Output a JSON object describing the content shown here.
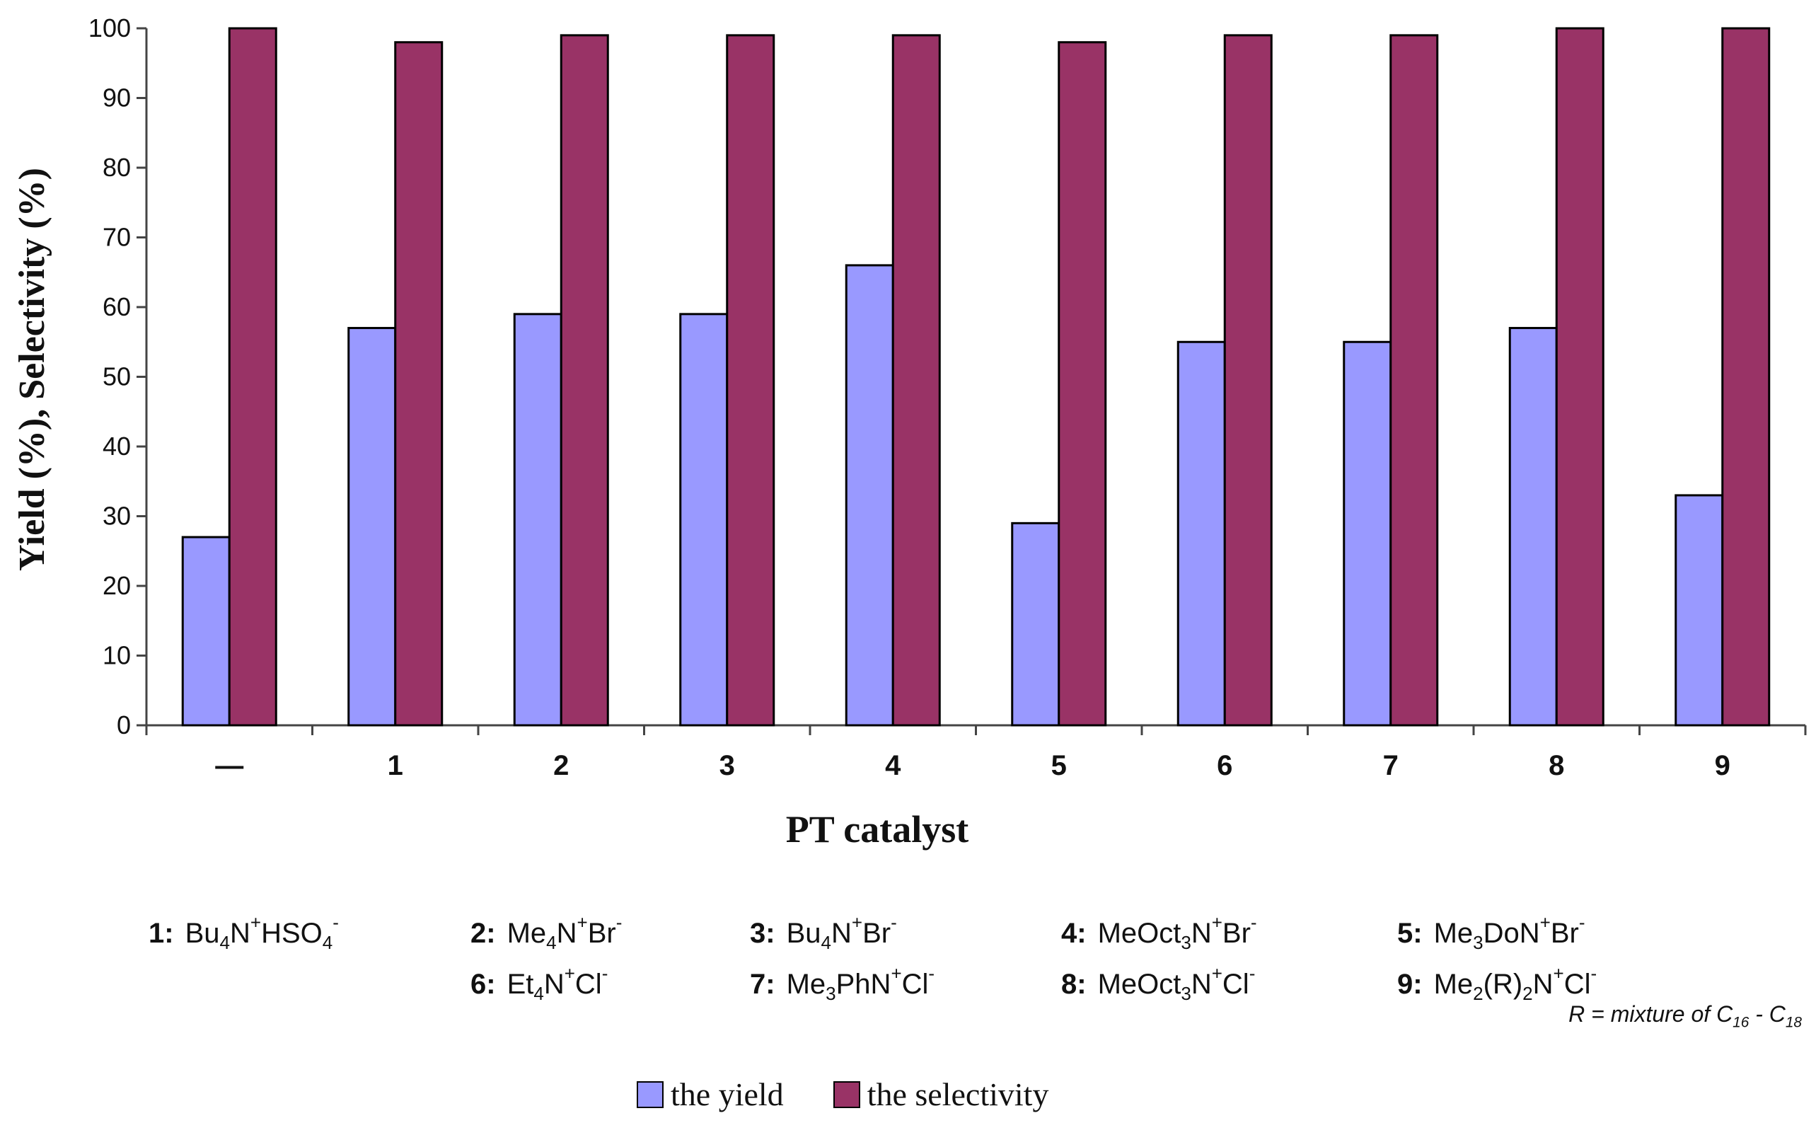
{
  "chart_data": {
    "type": "bar",
    "title": "",
    "xlabel": "PT catalyst",
    "ylabel": "Yield (%), Selectivity (%)",
    "categories": [
      "—",
      "1",
      "2",
      "3",
      "4",
      "5",
      "6",
      "7",
      "8",
      "9"
    ],
    "ylim": [
      0,
      100
    ],
    "yticks": [
      "0",
      "10",
      "20",
      "30",
      "40",
      "50",
      "60",
      "70",
      "80",
      "90",
      "100"
    ],
    "series": [
      {
        "name": "the yield",
        "color": "#9999ff",
        "values": [
          27,
          57,
          59,
          59,
          66,
          29,
          55,
          55,
          57,
          33
        ]
      },
      {
        "name": "the selectivity",
        "color": "#993366",
        "values": [
          100,
          98,
          99,
          99,
          99,
          98,
          99,
          99,
          100,
          100
        ]
      }
    ],
    "legend_position": "bottom",
    "grid": false
  },
  "catalyst_key": [
    {
      "num": "1:",
      "parts": [
        [
          "t",
          "Bu"
        ],
        [
          "sub",
          "4"
        ],
        [
          "t",
          "N"
        ],
        [
          "sup",
          "+"
        ],
        [
          "t",
          "HSO"
        ],
        [
          "sub",
          "4"
        ],
        [
          "sup",
          "-"
        ]
      ]
    },
    {
      "num": "2:",
      "parts": [
        [
          "t",
          "Me"
        ],
        [
          "sub",
          "4"
        ],
        [
          "t",
          "N"
        ],
        [
          "sup",
          "+"
        ],
        [
          "t",
          "Br"
        ],
        [
          "sup",
          "-"
        ]
      ]
    },
    {
      "num": "3:",
      "parts": [
        [
          "t",
          "Bu"
        ],
        [
          "sub",
          "4"
        ],
        [
          "t",
          "N"
        ],
        [
          "sup",
          "+"
        ],
        [
          "t",
          "Br"
        ],
        [
          "sup",
          "-"
        ]
      ]
    },
    {
      "num": "4:",
      "parts": [
        [
          "t",
          "MeOct"
        ],
        [
          "sub",
          "3"
        ],
        [
          "t",
          "N"
        ],
        [
          "sup",
          "+"
        ],
        [
          "t",
          "Br"
        ],
        [
          "sup",
          "-"
        ]
      ]
    },
    {
      "num": "5:",
      "parts": [
        [
          "t",
          "Me"
        ],
        [
          "sub",
          "3"
        ],
        [
          "t",
          "DoN"
        ],
        [
          "sup",
          "+"
        ],
        [
          "t",
          "Br"
        ],
        [
          "sup",
          "-"
        ]
      ]
    },
    {
      "num": "6:",
      "parts": [
        [
          "t",
          "Et"
        ],
        [
          "sub",
          "4"
        ],
        [
          "t",
          "N"
        ],
        [
          "sup",
          "+"
        ],
        [
          "t",
          "Cl"
        ],
        [
          "sup",
          "-"
        ]
      ]
    },
    {
      "num": "7:",
      "parts": [
        [
          "t",
          "Me"
        ],
        [
          "sub",
          "3"
        ],
        [
          "t",
          "PhN"
        ],
        [
          "sup",
          "+"
        ],
        [
          "t",
          "Cl"
        ],
        [
          "sup",
          "-"
        ]
      ]
    },
    {
      "num": "8:",
      "parts": [
        [
          "t",
          "MeOct"
        ],
        [
          "sub",
          "3"
        ],
        [
          "t",
          "N"
        ],
        [
          "sup",
          "+"
        ],
        [
          "t",
          "Cl"
        ],
        [
          "sup",
          "-"
        ]
      ]
    },
    {
      "num": "9:",
      "parts": [
        [
          "t",
          "Me"
        ],
        [
          "sub",
          "2"
        ],
        [
          "t",
          "(R)"
        ],
        [
          "sub",
          "2"
        ],
        [
          "t",
          "N"
        ],
        [
          "sup",
          "+"
        ],
        [
          "t",
          "Cl"
        ],
        [
          "sup",
          "-"
        ]
      ]
    }
  ],
  "note": {
    "parts": [
      [
        "t",
        "R = mixture of C"
      ],
      [
        "sub",
        "16"
      ],
      [
        "t",
        " - C"
      ],
      [
        "sub",
        "18"
      ]
    ]
  }
}
